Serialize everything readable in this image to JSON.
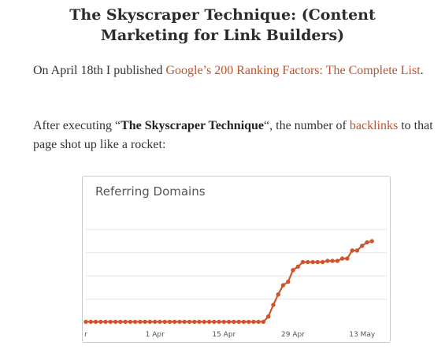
{
  "article": {
    "title": "The Skyscraper Technique: (Content Marketing for Link Builders)",
    "paragraph1": {
      "prefix": "On April 18th I published ",
      "link_text": "Google’s 200 Ranking Factors: The Complete List",
      "suffix": "."
    },
    "paragraph2": {
      "before_bold": "After executing “",
      "bold_text": "The Skyscraper Technique",
      "after_bold": "“, the number of ",
      "link_text": "backlinks",
      "suffix": " to that page shot up like a rocket:"
    },
    "link_color": "#c0522b"
  },
  "chart_data": {
    "type": "line",
    "title": "Referring Domains",
    "x_tick_labels": [
      "r",
      "1 Apr",
      "15 Apr",
      "29 Apr",
      "13 May"
    ],
    "x_tick_dates": [
      "2013-03-18",
      "2013-04-01",
      "2013-04-15",
      "2013-04-29",
      "2013-05-13"
    ],
    "xlim": [
      "2013-03-18",
      "2013-05-18"
    ],
    "ylim": [
      0,
      5
    ],
    "grid": true,
    "series_color": "#d0552e",
    "series": [
      {
        "values": [
          0.02,
          0.02,
          0.02,
          0.02,
          0.02,
          0.02,
          0.02,
          0.02,
          0.02,
          0.02,
          0.02,
          0.02,
          0.02,
          0.02,
          0.02,
          0.02,
          0.02,
          0.02,
          0.02,
          0.02,
          0.02,
          0.02,
          0.02,
          0.02,
          0.02,
          0.02,
          0.02,
          0.02,
          0.02,
          0.02,
          0.02,
          0.02,
          0.02,
          0.02,
          0.02,
          0.02,
          0.02,
          0.25,
          0.75,
          1.2,
          1.6,
          1.75,
          2.25,
          2.4,
          2.6,
          2.6,
          2.6,
          2.6,
          2.6,
          2.65,
          2.65,
          2.65,
          2.75,
          2.75,
          3.1,
          3.1,
          3.3,
          3.45,
          3.5
        ]
      }
    ]
  }
}
